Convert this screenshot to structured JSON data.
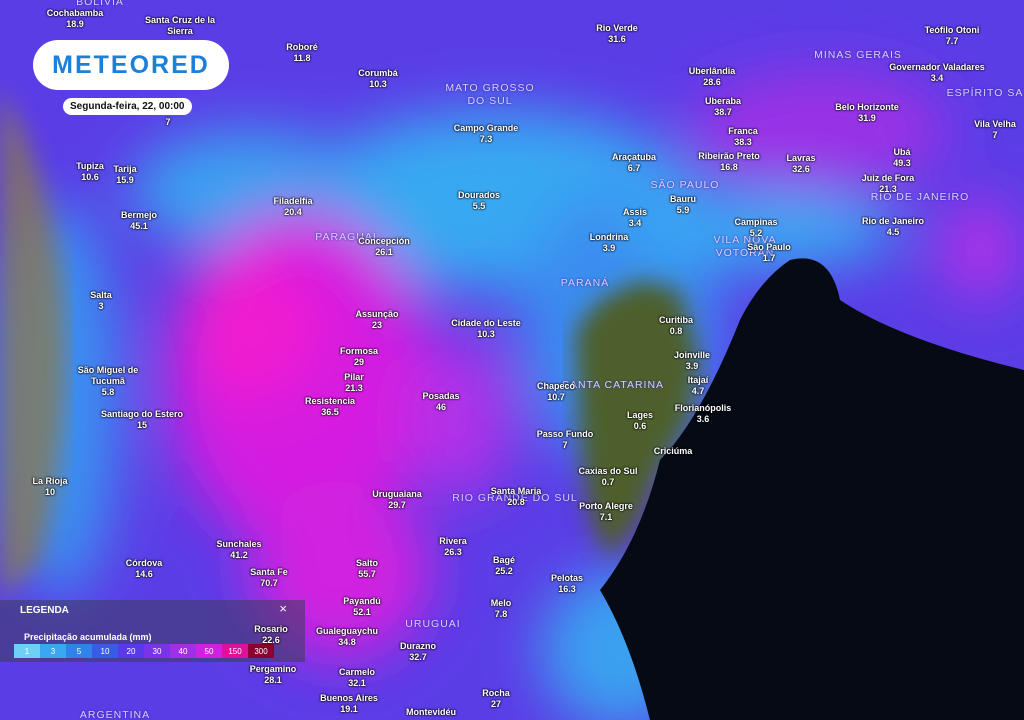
{
  "logo": "METEORED",
  "date": "Segunda-feira, 22, 00:00",
  "regions": [
    "BOLIVIA",
    "MATO GROSSO DO SUL",
    "MINAS GERAIS",
    "ESPÍRITO SA",
    "SÃO PAULO",
    "RIO DE JANEIRO",
    "PARAGUAI",
    "VILA NOVA VOTORAN",
    "PARANÁ",
    "SANTA CATARINA",
    "RIO GRANDE DO SUL",
    "URUGUAI",
    "ARGENTINA"
  ],
  "cities": [
    {
      "name": "Cochabamba",
      "value": 18.9
    },
    {
      "name": "Santa Cruz de la Sierra"
    },
    {
      "name": "Roboré",
      "value": 11.8
    },
    {
      "name": "Corumbá",
      "value": 10.3
    },
    {
      "name": "Rio Verde",
      "value": 31.6
    },
    {
      "name": "Teófilo Otoni",
      "value": 7.7
    },
    {
      "name": "Uberlândia",
      "value": 28.6
    },
    {
      "name": "Governador Valadares",
      "value": 3.4
    },
    {
      "name": "Uberaba",
      "value": 38.7
    },
    {
      "name": "Belo Horizonte",
      "value": 31.9
    },
    {
      "name": "Vila Velha",
      "value": 7
    },
    {
      "name": "Franca",
      "value": 38.3
    },
    {
      "name": "Campo Grande",
      "value": 7.3
    },
    {
      "value": 7
    },
    {
      "name": "Tupiza",
      "value": 10.6
    },
    {
      "name": "Tarija",
      "value": 15.9
    },
    {
      "name": "Araçatuba",
      "value": 6.7
    },
    {
      "name": "Ribeirão Preto",
      "value": 16.8
    },
    {
      "name": "Lavras",
      "value": 32.6
    },
    {
      "name": "Ubá",
      "value": 49.3
    },
    {
      "name": "Juiz de Fora",
      "value": 21.3
    },
    {
      "name": "Bermejo",
      "value": 45.1
    },
    {
      "name": "Filadelfia",
      "value": 20.4
    },
    {
      "name": "Dourados",
      "value": 5.5
    },
    {
      "name": "Bauru",
      "value": 5.9
    },
    {
      "name": "Assis",
      "value": 3.4
    },
    {
      "name": "Campinas",
      "value": 5.2
    },
    {
      "name": "Rio de Janeiro",
      "value": 4.5
    },
    {
      "name": "Concepción",
      "value": 26.1
    },
    {
      "name": "Londrina",
      "value": 3.9
    },
    {
      "name": "São Paulo",
      "value": 1.7
    },
    {
      "name": "Salta",
      "value": 3
    },
    {
      "name": "Assunção",
      "value": 23
    },
    {
      "name": "Cidade do Leste",
      "value": 10.3
    },
    {
      "name": "Curitiba",
      "value": 0.8
    },
    {
      "name": "Formosa",
      "value": 29
    },
    {
      "name": "Joinville",
      "value": 3.9
    },
    {
      "name": "São Miguel de Tucumã",
      "value": 5.8
    },
    {
      "name": "Pilar",
      "value": 21.3
    },
    {
      "name": "Itajaí",
      "value": 4.7
    },
    {
      "name": "Chapecó",
      "value": 10.7
    },
    {
      "name": "Resistencia",
      "value": 36.5
    },
    {
      "name": "Posadas",
      "value": 46
    },
    {
      "name": "Florianópolis",
      "value": 3.6
    },
    {
      "name": "Lages",
      "value": 0.6
    },
    {
      "name": "Santiago do Estero",
      "value": 15
    },
    {
      "name": "Passo Fundo",
      "value": 7
    },
    {
      "name": "Criciúma"
    },
    {
      "name": "Caxias do Sul",
      "value": 0.7
    },
    {
      "name": "La Rioja",
      "value": 10
    },
    {
      "name": "Uruguaiana",
      "value": 29.7
    },
    {
      "name": "Santa Maria",
      "value": 20.8
    },
    {
      "name": "Porto Alegre",
      "value": 7.1
    },
    {
      "name": "Sunchales",
      "value": 41.2
    },
    {
      "name": "Rivera",
      "value": 26.3
    },
    {
      "name": "Bagé",
      "value": 25.2
    },
    {
      "name": "Córdova",
      "value": 14.6
    },
    {
      "name": "Salto",
      "value": 55.7
    },
    {
      "name": "Santa Fe",
      "value": 70.7
    },
    {
      "name": "Pelotas",
      "value": 16.3
    },
    {
      "name": "Payandú",
      "value": 52.1
    },
    {
      "name": "Melo",
      "value": 7.8
    },
    {
      "name": "Rosario",
      "value": 22.6
    },
    {
      "name": "Gualeguaychu",
      "value": 34.8
    },
    {
      "name": "Durazno",
      "value": 32.7
    },
    {
      "name": "Pergamino",
      "value": 28.1
    },
    {
      "name": "Carmelo",
      "value": 32.1
    },
    {
      "name": "Rocha",
      "value": 27
    },
    {
      "name": "Buenos Aires",
      "value": 19.1
    },
    {
      "name": "Montevidéu"
    }
  ],
  "legend": {
    "title": "LEGENDA",
    "close": "×",
    "subtitle": "Precipitação acumulada (mm)",
    "scale": [
      {
        "value": 1,
        "color": "#6fd0f5"
      },
      {
        "value": 3,
        "color": "#3aa8f0"
      },
      {
        "value": 5,
        "color": "#2f84ea"
      },
      {
        "value": 10,
        "color": "#3a5ae8"
      },
      {
        "value": 20,
        "color": "#5a3ae8"
      },
      {
        "value": 30,
        "color": "#7a34e8"
      },
      {
        "value": 40,
        "color": "#a030e8"
      },
      {
        "value": 50,
        "color": "#d020e0"
      },
      {
        "value": 150,
        "color": "#e0109a"
      },
      {
        "value": 300,
        "color": "#8a0030"
      }
    ]
  }
}
